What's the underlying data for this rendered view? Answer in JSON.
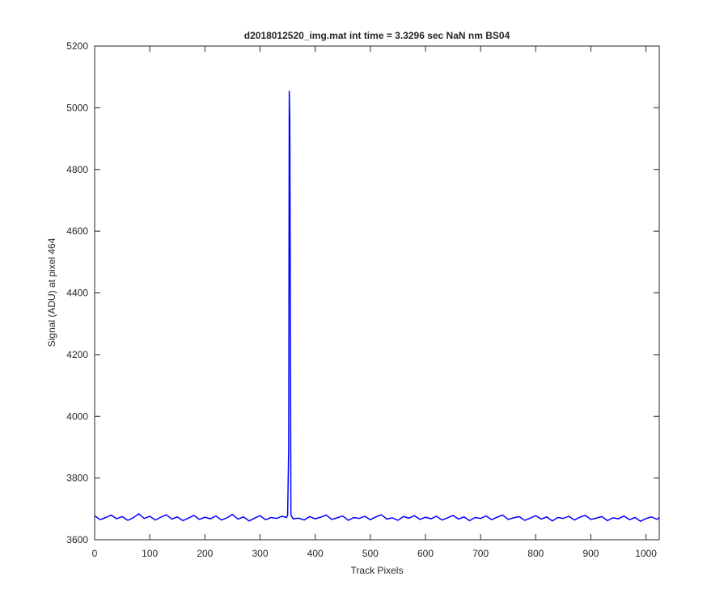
{
  "chart_data": {
    "type": "line",
    "title": "d2018012520_img.mat int time = 3.3296 sec  NaN nm BS04",
    "x_label": "Track Pixels",
    "y_label": "Signal (ADU) at pixel 464",
    "x": [
      0,
      10,
      20,
      30,
      40,
      50,
      60,
      70,
      80,
      90,
      100,
      110,
      120,
      130,
      140,
      150,
      160,
      170,
      180,
      190,
      200,
      210,
      220,
      230,
      240,
      250,
      260,
      270,
      280,
      290,
      300,
      310,
      320,
      330,
      340,
      348,
      350,
      352,
      353,
      354,
      356,
      360,
      370,
      380,
      390,
      400,
      410,
      420,
      430,
      440,
      450,
      460,
      470,
      480,
      490,
      500,
      510,
      520,
      530,
      540,
      550,
      560,
      570,
      580,
      590,
      600,
      610,
      620,
      630,
      640,
      650,
      660,
      670,
      680,
      690,
      700,
      710,
      720,
      730,
      740,
      750,
      760,
      770,
      780,
      790,
      800,
      810,
      820,
      830,
      840,
      850,
      860,
      870,
      880,
      890,
      900,
      910,
      920,
      930,
      940,
      950,
      960,
      970,
      980,
      990,
      1000,
      1010,
      1020,
      1024
    ],
    "series": [
      {
        "name": "signal",
        "color": "#0000ff",
        "values": [
          3678,
          3665,
          3672,
          3680,
          3668,
          3675,
          3663,
          3671,
          3684,
          3669,
          3676,
          3664,
          3673,
          3681,
          3667,
          3674,
          3662,
          3670,
          3679,
          3666,
          3673,
          3668,
          3677,
          3664,
          3671,
          3682,
          3667,
          3674,
          3661,
          3670,
          3678,
          3665,
          3672,
          3669,
          3676,
          3672,
          3680,
          3900,
          5055,
          4950,
          3680,
          3668,
          3670,
          3664,
          3675,
          3668,
          3673,
          3680,
          3666,
          3671,
          3677,
          3663,
          3672,
          3669,
          3676,
          3665,
          3674,
          3681,
          3667,
          3671,
          3663,
          3675,
          3670,
          3678,
          3666,
          3673,
          3668,
          3676,
          3664,
          3671,
          3679,
          3667,
          3674,
          3662,
          3672,
          3669,
          3677,
          3665,
          3673,
          3680,
          3666,
          3671,
          3675,
          3663,
          3670,
          3678,
          3667,
          3674,
          3661,
          3672,
          3669,
          3676,
          3664,
          3673,
          3679,
          3666,
          3670,
          3675,
          3662,
          3671,
          3668,
          3677,
          3665,
          3672,
          3660,
          3669,
          3674,
          3666,
          3672
        ]
      }
    ],
    "xlim": [
      0,
      1024
    ],
    "xticks": [
      0,
      100,
      200,
      300,
      400,
      500,
      600,
      700,
      800,
      900,
      1000
    ],
    "ylim": [
      3600,
      5200
    ],
    "yticks": [
      3600,
      3800,
      4000,
      4200,
      4400,
      4600,
      4800,
      5000,
      5200
    ]
  }
}
